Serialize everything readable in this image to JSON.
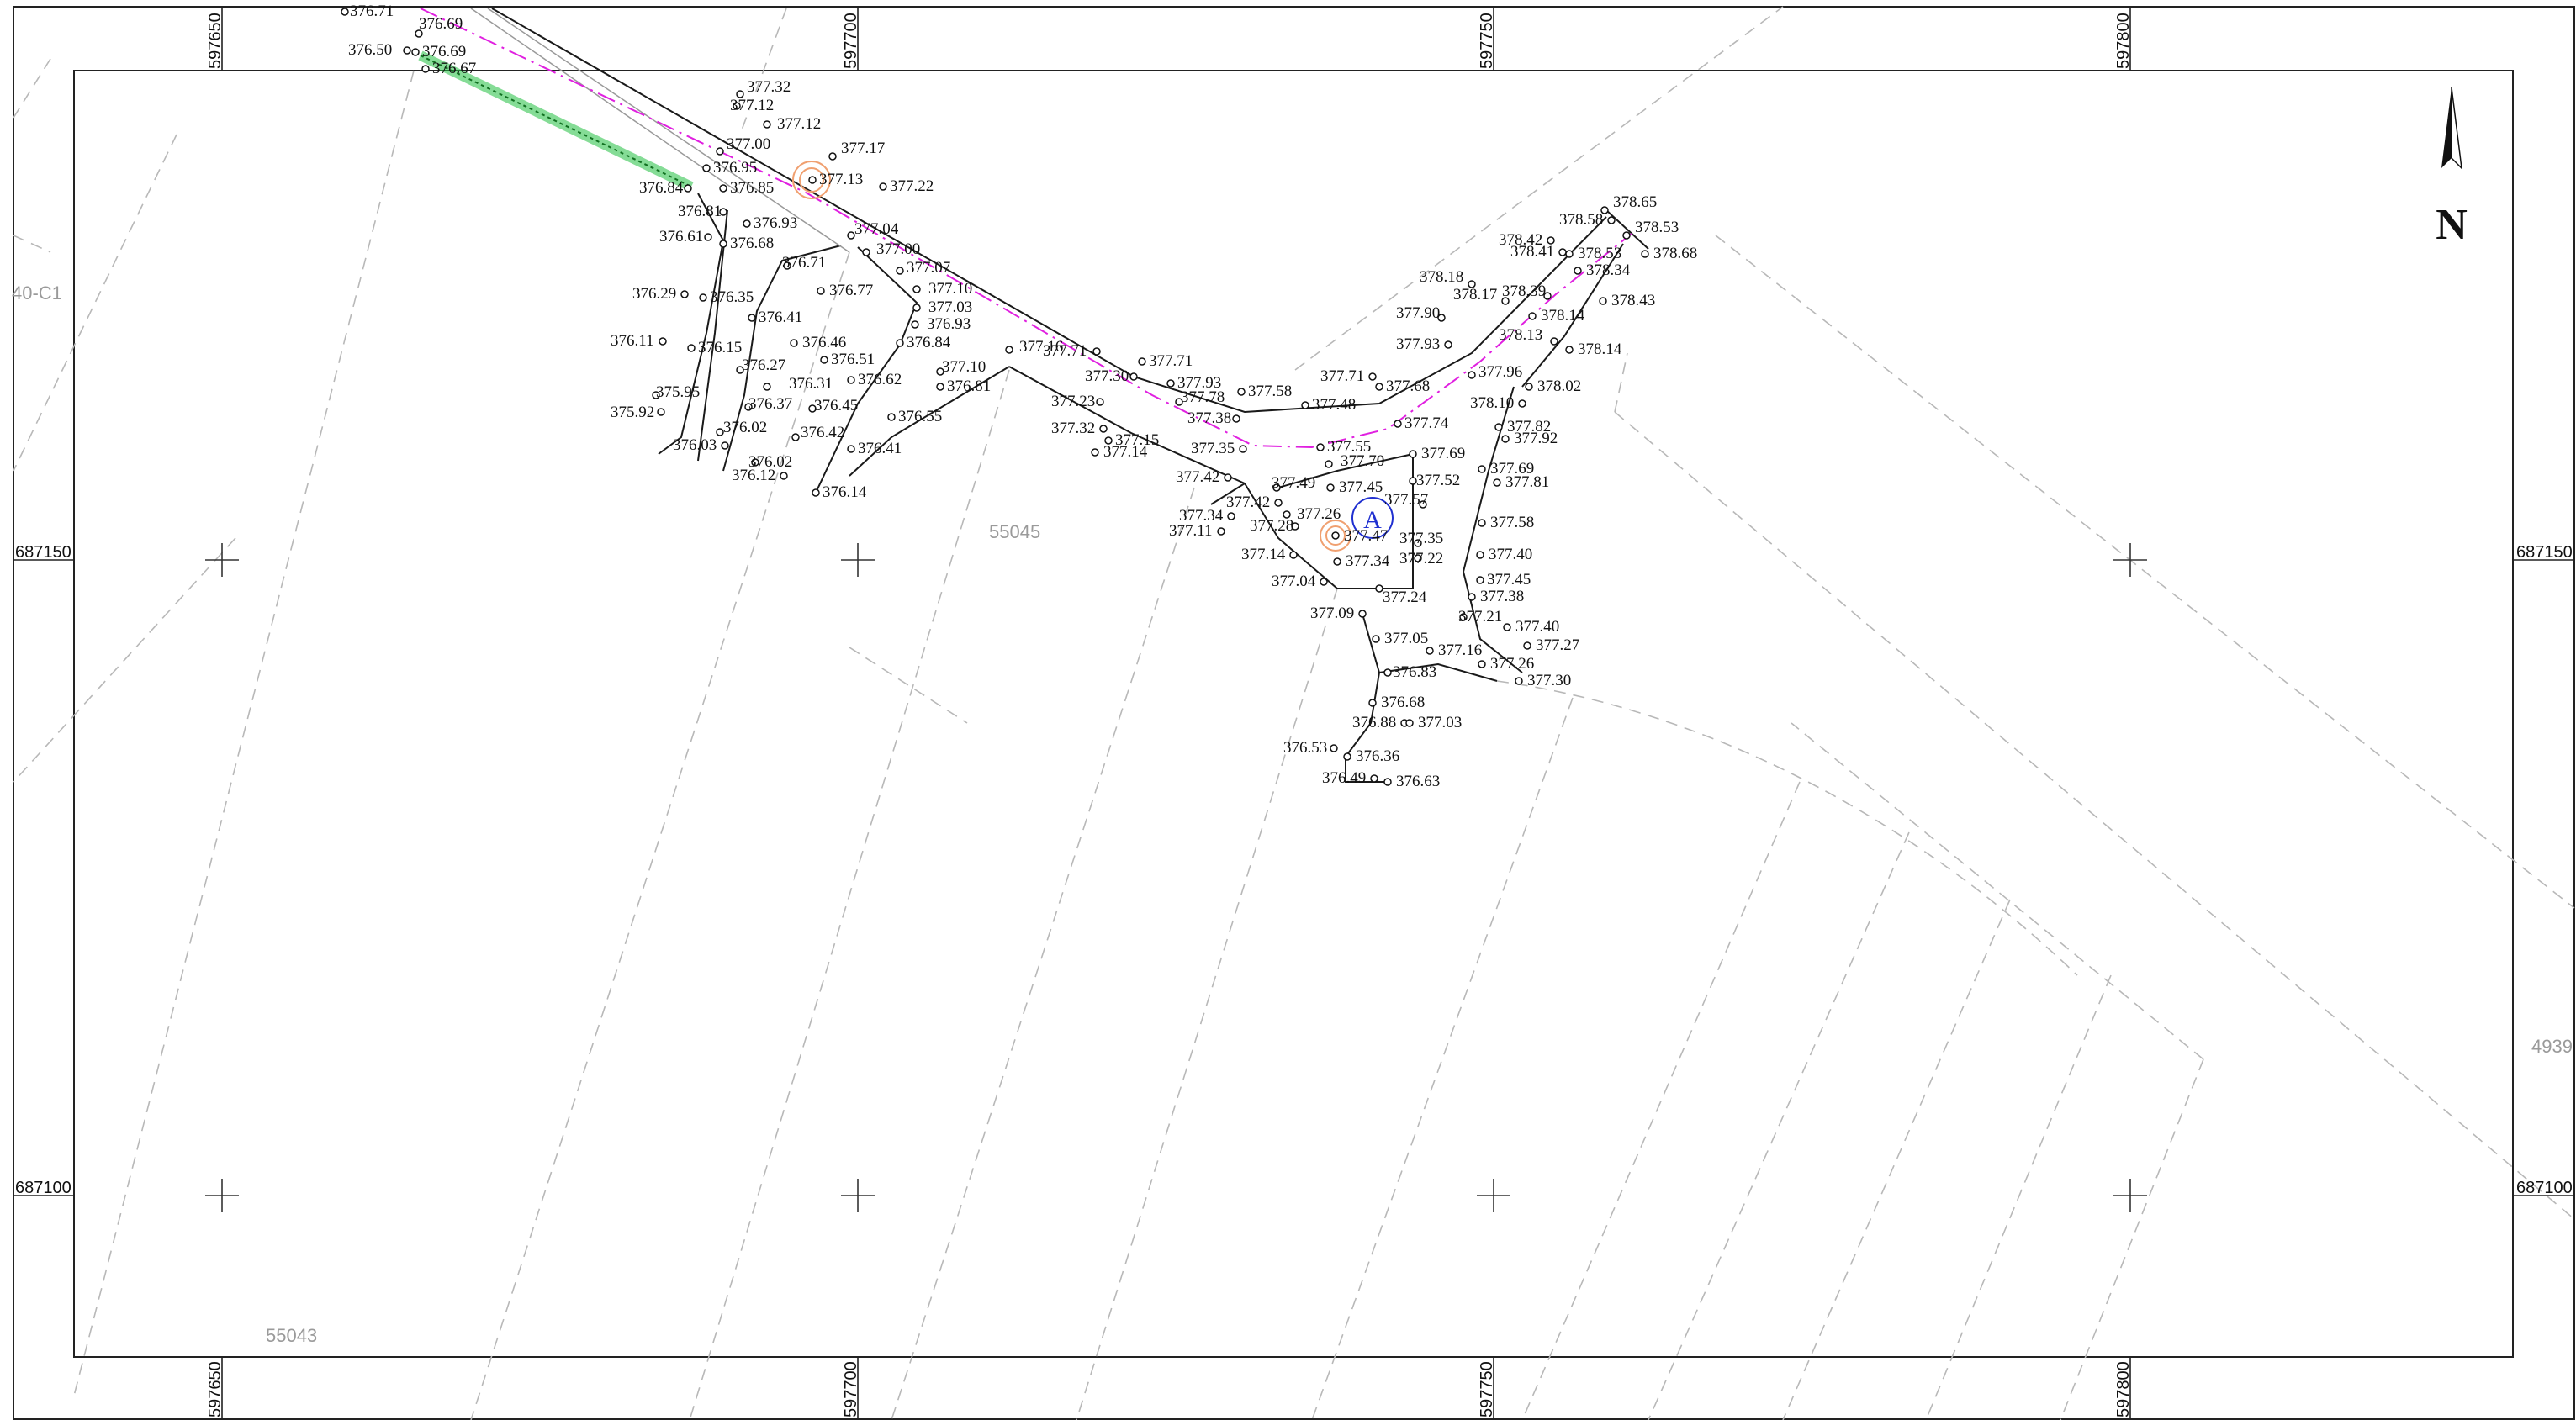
{
  "frame": {
    "x_ticks": [
      "597650",
      "597700",
      "597750",
      "597800"
    ],
    "y_ticks": [
      "687150",
      "687100"
    ]
  },
  "parcels": {
    "p1": "55045",
    "p2": "55043",
    "p3": "40-C1",
    "p4": "4939"
  },
  "north_arrow": {
    "letter": "N"
  },
  "benchmark": {
    "letter": "A"
  },
  "colors": {
    "road_line": "#1a1a1a",
    "centerline": "#e020e0",
    "parcel_dash": "#b8b8b8",
    "hedge": "#20c040",
    "tree": "#f0a070",
    "benchmark": "#2030d0"
  },
  "spot_heights": [
    "376.71",
    "376.69",
    "376.50",
    "376.69",
    "376.67",
    "377.32",
    "377.12",
    "377.12",
    "377.00",
    "376.95",
    "376.84",
    "376.85",
    "376.81",
    "376.93",
    "376.61",
    "376.68",
    "377.17",
    "377.13",
    "377.22",
    "377.04",
    "376.71",
    "377.00",
    "377.07",
    "376.77",
    "377.10",
    "377.03",
    "376.93",
    "376.29",
    "376.35",
    "376.41",
    "376.11",
    "376.15",
    "376.46",
    "376.51",
    "376.84",
    "377.16",
    "376.27",
    "376.31",
    "376.62",
    "377.10",
    "376.81",
    "376.37",
    "376.45",
    "376.55",
    "375.95",
    "375.92",
    "376.02",
    "376.03",
    "376.42",
    "376.41",
    "376.02",
    "376.12",
    "376.14",
    "377.71",
    "377.71",
    "377.30",
    "377.93",
    "377.23",
    "377.78",
    "377.38",
    "377.58",
    "377.48",
    "377.71",
    "377.68",
    "377.32",
    "377.15",
    "377.14",
    "377.35",
    "377.55",
    "377.74",
    "377.42",
    "377.49",
    "377.70",
    "377.45",
    "377.69",
    "377.42",
    "377.26",
    "377.52",
    "377.34",
    "377.28",
    "377.47",
    "377.57",
    "377.11",
    "377.14",
    "377.34",
    "377.35",
    "377.22",
    "377.40",
    "377.04",
    "377.24",
    "377.45",
    "377.38",
    "377.09",
    "377.05",
    "377.21",
    "377.40",
    "377.16",
    "377.27",
    "377.26",
    "376.83",
    "377.30",
    "376.68",
    "376.88",
    "377.03",
    "376.53",
    "376.36",
    "376.49",
    "376.63",
    "378.65",
    "378.58",
    "378.42",
    "378.53",
    "378.41",
    "378.53",
    "378.68",
    "378.34",
    "378.18",
    "378.39",
    "378.17",
    "378.43",
    "377.90",
    "378.14",
    "377.93",
    "378.13",
    "378.14",
    "377.96",
    "378.02",
    "378.10",
    "377.82",
    "377.92",
    "377.69",
    "377.81",
    "377.58"
  ]
}
